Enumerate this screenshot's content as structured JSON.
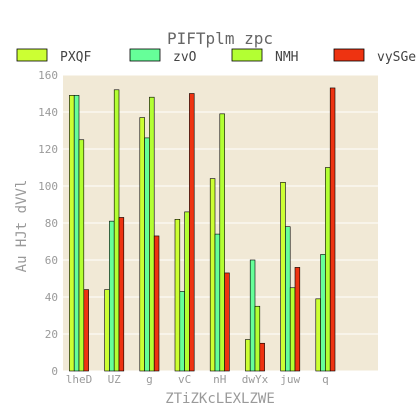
{
  "chart_data": {
    "type": "bar",
    "title": "PIFTplm  zpc",
    "xlabel": "ZTiZKcLEXLZWE",
    "ylabel": "Au HJt dVVl",
    "ylim": [
      0,
      160
    ],
    "yticks": [
      0,
      20,
      40,
      60,
      80,
      100,
      120,
      140,
      160
    ],
    "grid": true,
    "legend_position": "top",
    "categories": [
      "lheD",
      "UZ",
      "g",
      "vC",
      "nH",
      "dwYx",
      "juw",
      "q"
    ],
    "series": [
      {
        "name": "PXQF",
        "color": "#ccff33",
        "values": [
          149,
          44,
          137,
          82,
          104,
          17,
          102,
          39
        ]
      },
      {
        "name": "zvO",
        "color": "#66ff99",
        "values": [
          149,
          81,
          126,
          43,
          74,
          60,
          78,
          63
        ]
      },
      {
        "name": "NMH",
        "color": "#b3ff33",
        "values": [
          125,
          152,
          148,
          86,
          139,
          35,
          45,
          110
        ]
      },
      {
        "name": "vySGe",
        "color": "#ee3311",
        "values": [
          44,
          83,
          73,
          150,
          53,
          15,
          56,
          153
        ]
      }
    ]
  }
}
